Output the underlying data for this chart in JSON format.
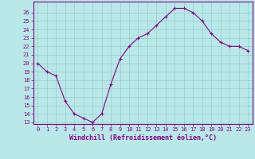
{
  "x": [
    0,
    1,
    2,
    3,
    4,
    5,
    6,
    7,
    8,
    9,
    10,
    11,
    12,
    13,
    14,
    15,
    16,
    17,
    18,
    19,
    20,
    21,
    22,
    23
  ],
  "y": [
    20,
    19,
    18.5,
    15.5,
    14,
    13.5,
    13,
    14,
    17.5,
    20.5,
    22,
    23,
    23.5,
    24.5,
    25.5,
    26.5,
    26.5,
    26,
    25,
    23.5,
    22.5,
    22,
    22,
    21.5
  ],
  "line_color": "#880088",
  "marker": "+",
  "marker_color": "#880088",
  "bg_color": "#b8e8e8",
  "grid_color": "#99cccc",
  "xlabel": "Windchill (Refroidissement éolien,°C)",
  "ylim": [
    13,
    27
  ],
  "xlim": [
    -0.5,
    23.5
  ],
  "yticks": [
    13,
    14,
    15,
    16,
    17,
    18,
    19,
    20,
    21,
    22,
    23,
    24,
    25,
    26
  ],
  "xticks": [
    0,
    1,
    2,
    3,
    4,
    5,
    6,
    7,
    8,
    9,
    10,
    11,
    12,
    13,
    14,
    15,
    16,
    17,
    18,
    19,
    20,
    21,
    22,
    23
  ],
  "tick_label_color": "#880088",
  "tick_fontsize": 5.0,
  "xlabel_fontsize": 6.0,
  "spine_color": "#880088",
  "line_width": 0.8,
  "marker_size": 3.0
}
